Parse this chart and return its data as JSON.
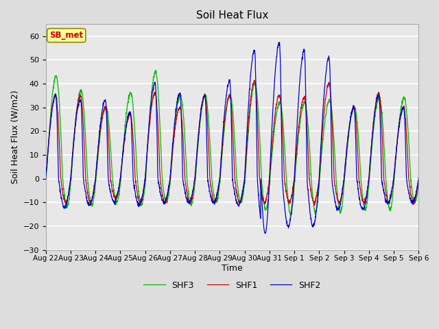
{
  "title": "Soil Heat Flux",
  "ylabel": "Soil Heat Flux (W/m2)",
  "xlabel": "Time",
  "ylim": [
    -30,
    65
  ],
  "yticks": [
    -30,
    -20,
    -10,
    0,
    10,
    20,
    30,
    40,
    50,
    60
  ],
  "background_color": "#dddddd",
  "plot_bg_color": "#e8e8e8",
  "grid_color": "#ffffff",
  "shf1_color": "#cc0000",
  "shf2_color": "#0000cc",
  "shf3_color": "#00bb00",
  "legend_label1": "SHF1",
  "legend_label2": "SHF2",
  "legend_label3": "SHF3",
  "annotation_text": "SB_met",
  "annotation_color": "#cc0000",
  "annotation_bg": "#ffff99",
  "xtick_labels": [
    "Aug 22",
    "Aug 23",
    "Aug 24",
    "Aug 25",
    "Aug 26",
    "Aug 27",
    "Aug 28",
    "Aug 29",
    "Aug 30",
    "Aug 31",
    "Sep 1",
    "Sep 2",
    "Sep 3",
    "Sep 4",
    "Sep 5",
    "Sep 6"
  ],
  "n_days": 15,
  "ppd": 144
}
